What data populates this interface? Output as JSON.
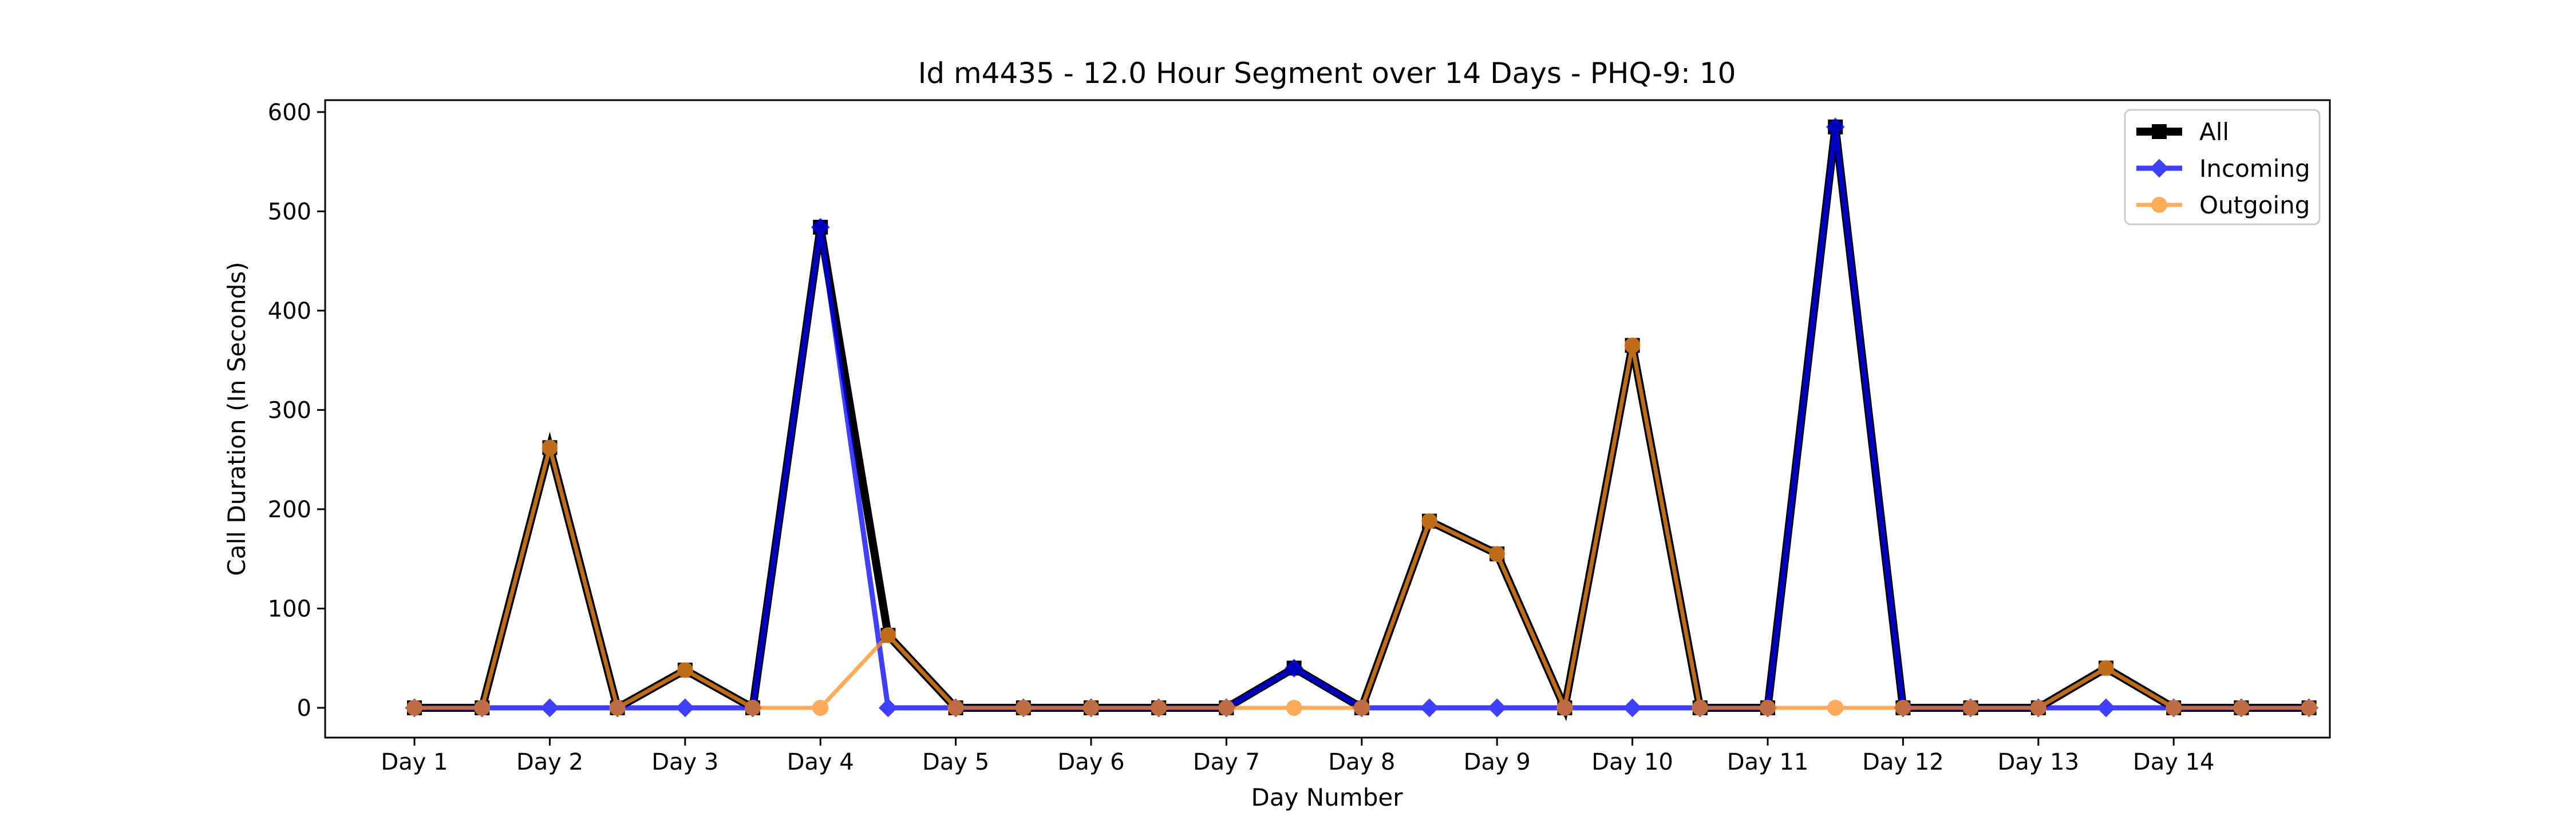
{
  "chart_data": {
    "type": "line",
    "title": "Id m4435 - 12.0 Hour Segment over 14 Days - PHQ-9: 10",
    "xlabel": "Day Number",
    "ylabel": "Call Duration (In Seconds)",
    "x_tick_labels": [
      "Day 1",
      "Day 2",
      "Day 3",
      "Day 4",
      "Day 5",
      "Day 6",
      "Day 7",
      "Day 8",
      "Day 9",
      "Day 10",
      "Day 11",
      "Day 12",
      "Day 13",
      "Day 14"
    ],
    "ylim": [
      -30,
      612
    ],
    "y_ticks": [
      0,
      100,
      200,
      300,
      400,
      500,
      600
    ],
    "grid": false,
    "legend_position": "top-right",
    "series": [
      {
        "name": "All",
        "color": "#000000",
        "marker": "square",
        "values": [
          0,
          0,
          262,
          0,
          38,
          0,
          484,
          73,
          0,
          0,
          0,
          0,
          0,
          40,
          0,
          188,
          155,
          0,
          365,
          0,
          0,
          585,
          0,
          0,
          0,
          40,
          0,
          0,
          0
        ]
      },
      {
        "name": "Incoming",
        "color": "#0000ff",
        "marker": "diamond",
        "values": [
          0,
          0,
          0,
          0,
          0,
          0,
          484,
          0,
          0,
          0,
          0,
          0,
          0,
          40,
          0,
          0,
          0,
          0,
          0,
          0,
          0,
          585,
          0,
          0,
          0,
          0,
          0,
          0,
          0
        ]
      },
      {
        "name": "Outgoing",
        "color": "#ff9020",
        "marker": "circle",
        "values": [
          0,
          0,
          262,
          0,
          38,
          0,
          0,
          73,
          0,
          0,
          0,
          0,
          0,
          0,
          0,
          188,
          155,
          0,
          365,
          0,
          0,
          0,
          0,
          0,
          0,
          40,
          0,
          0,
          0
        ]
      }
    ]
  }
}
